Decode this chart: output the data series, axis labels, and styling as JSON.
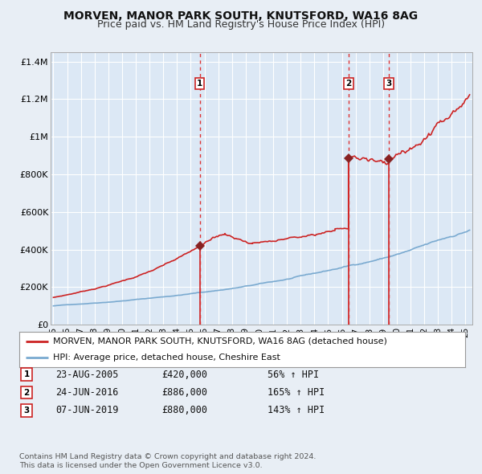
{
  "title": "MORVEN, MANOR PARK SOUTH, KNUTSFORD, WA16 8AG",
  "subtitle": "Price paid vs. HM Land Registry's House Price Index (HPI)",
  "title_fontsize": 10,
  "subtitle_fontsize": 9,
  "bg_color": "#e8eef5",
  "plot_bg_color": "#dce8f5",
  "grid_color": "#ffffff",
  "red_line_color": "#cc2222",
  "blue_line_color": "#7aaad0",
  "sale_marker_color": "#882222",
  "vline_color": "#dd3333",
  "purchases": [
    {
      "label": "1",
      "date_num": 2005.65,
      "price": 420000,
      "hpi_pct": "56% ↑ HPI",
      "date_str": "23-AUG-2005"
    },
    {
      "label": "2",
      "date_num": 2016.48,
      "price": 886000,
      "hpi_pct": "165% ↑ HPI",
      "date_str": "24-JUN-2016"
    },
    {
      "label": "3",
      "date_num": 2019.43,
      "price": 880000,
      "hpi_pct": "143% ↑ HPI",
      "date_str": "07-JUN-2019"
    }
  ],
  "ylim": [
    0,
    1450000
  ],
  "xlim": [
    1994.8,
    2025.5
  ],
  "yticks": [
    0,
    200000,
    400000,
    600000,
    800000,
    1000000,
    1200000,
    1400000
  ],
  "ytick_labels": [
    "£0",
    "£200K",
    "£400K",
    "£600K",
    "£800K",
    "£1M",
    "£1.2M",
    "£1.4M"
  ],
  "xticks": [
    1995,
    1996,
    1997,
    1998,
    1999,
    2000,
    2001,
    2002,
    2003,
    2004,
    2005,
    2006,
    2007,
    2008,
    2009,
    2010,
    2011,
    2012,
    2013,
    2014,
    2015,
    2016,
    2017,
    2018,
    2019,
    2020,
    2021,
    2022,
    2023,
    2024,
    2025
  ],
  "footer1": "Contains HM Land Registry data © Crown copyright and database right 2024.",
  "footer2": "This data is licensed under the Open Government Licence v3.0.",
  "legend_text_red": "MORVEN, MANOR PARK SOUTH, KNUTSFORD, WA16 8AG (detached house)",
  "legend_text_blue": "HPI: Average price, detached house, Cheshire East"
}
